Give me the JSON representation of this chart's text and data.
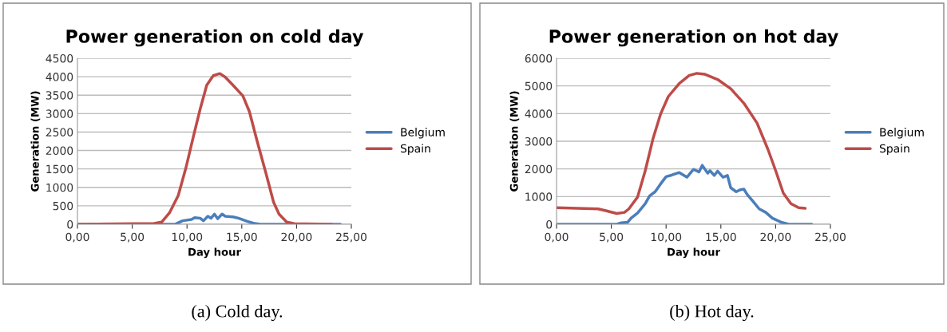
{
  "chart_data": [
    {
      "type": "line",
      "title": "Power generation on cold day",
      "xlabel": "Day hour",
      "ylabel": "Generation (MW)",
      "grid": "y",
      "legend": "right",
      "marker": "none",
      "line_style": "solid",
      "xlim": [
        0,
        25
      ],
      "xticks": [
        {
          "value": 0,
          "label": "0,00"
        },
        {
          "value": 5,
          "label": "5,00"
        },
        {
          "value": 10,
          "label": "10,00"
        },
        {
          "value": 15,
          "label": "15,00"
        },
        {
          "value": 20,
          "label": "20,00"
        },
        {
          "value": 25,
          "label": "25,00"
        }
      ],
      "ylim": [
        0,
        4500
      ],
      "yticks": [
        0,
        500,
        1000,
        1500,
        2000,
        2500,
        3000,
        3500,
        4000,
        4500
      ],
      "annotations": [
        "(a) Cold day."
      ],
      "series": [
        {
          "name": "Belgium",
          "color": "#4a7ebb",
          "x": [
            0,
            8.9,
            9.6,
            10.4,
            10.7,
            11.2,
            11.5,
            11.9,
            12.2,
            12.5,
            12.8,
            13.2,
            13.5,
            14.2,
            14.7,
            15.5,
            16.2,
            16.7,
            24.0
          ],
          "values": [
            0,
            0,
            95,
            130,
            180,
            165,
            95,
            215,
            165,
            275,
            150,
            275,
            215,
            200,
            165,
            80,
            20,
            0,
            0
          ]
        },
        {
          "name": "Spain",
          "color": "#be4b48",
          "x": [
            0,
            7.0,
            7.7,
            8.4,
            9.2,
            9.9,
            10.6,
            11.2,
            11.8,
            12.4,
            13.0,
            13.5,
            14.2,
            15.1,
            15.7,
            16.4,
            17.2,
            17.9,
            18.4,
            19.1,
            19.8,
            23.2
          ],
          "values": [
            0,
            20,
            60,
            310,
            780,
            1530,
            2400,
            3120,
            3770,
            4030,
            4085,
            3985,
            3770,
            3480,
            3050,
            2255,
            1390,
            600,
            275,
            60,
            15,
            0
          ]
        }
      ]
    },
    {
      "type": "line",
      "title": "Power generation on hot day",
      "xlabel": "Day hour",
      "ylabel": "Generation (MW)",
      "grid": "y",
      "legend": "right",
      "marker": "none",
      "line_style": "solid",
      "xlim": [
        0,
        25
      ],
      "xticks": [
        {
          "value": 0,
          "label": "0,00"
        },
        {
          "value": 5,
          "label": "5,00"
        },
        {
          "value": 10,
          "label": "10,00"
        },
        {
          "value": 15,
          "label": "15,00"
        },
        {
          "value": 20,
          "label": "20,00"
        },
        {
          "value": 25,
          "label": "25,00"
        }
      ],
      "ylim": [
        0,
        6000
      ],
      "yticks": [
        0,
        1000,
        2000,
        3000,
        4000,
        5000,
        6000
      ],
      "annotations": [
        "(b) Hot day."
      ],
      "series": [
        {
          "name": "Belgium",
          "color": "#4a7ebb",
          "x": [
            0,
            5.5,
            5.9,
            6.5,
            6.8,
            7.4,
            8.1,
            8.5,
            9.0,
            9.5,
            10.0,
            10.5,
            11.2,
            11.9,
            12.5,
            13.0,
            13.3,
            13.8,
            14.0,
            14.4,
            14.7,
            15.2,
            15.6,
            15.9,
            16.4,
            16.8,
            17.1,
            17.4,
            18.0,
            18.5,
            19.1,
            19.7,
            20.5,
            21.2,
            23.3
          ],
          "values": [
            0,
            0,
            50,
            75,
            220,
            410,
            745,
            1030,
            1175,
            1460,
            1720,
            1775,
            1870,
            1700,
            1985,
            1890,
            2130,
            1845,
            1940,
            1765,
            1920,
            1700,
            1765,
            1320,
            1175,
            1250,
            1270,
            1080,
            795,
            555,
            430,
            220,
            75,
            0,
            0
          ]
        },
        {
          "name": "Spain",
          "color": "#be4b48",
          "x": [
            0,
            3.8,
            4.5,
            5.5,
            6.2,
            6.6,
            7.4,
            8.1,
            8.8,
            9.5,
            10.2,
            11.2,
            12.1,
            12.8,
            13.5,
            14.7,
            15.9,
            17.1,
            18.3,
            19.3,
            20.0,
            20.7,
            21.4,
            22.1,
            22.7
          ],
          "values": [
            600,
            555,
            490,
            390,
            430,
            555,
            985,
            1940,
            3085,
            3990,
            4615,
            5090,
            5375,
            5455,
            5425,
            5235,
            4900,
            4375,
            3660,
            2705,
            1940,
            1125,
            745,
            600,
            575
          ]
        }
      ]
    }
  ]
}
